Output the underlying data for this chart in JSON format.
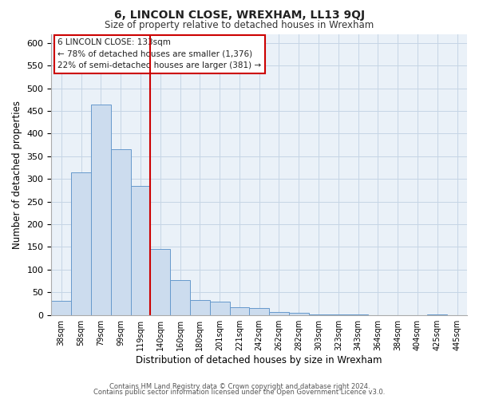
{
  "title": "6, LINCOLN CLOSE, WREXHAM, LL13 9QJ",
  "subtitle": "Size of property relative to detached houses in Wrexham",
  "xlabel": "Distribution of detached houses by size in Wrexham",
  "ylabel": "Number of detached properties",
  "bar_values": [
    32,
    315,
    465,
    365,
    285,
    145,
    77,
    33,
    30,
    17,
    15,
    7,
    4,
    2,
    2,
    2,
    0,
    0,
    0,
    2,
    0
  ],
  "bar_labels": [
    "38sqm",
    "58sqm",
    "79sqm",
    "99sqm",
    "119sqm",
    "140sqm",
    "160sqm",
    "180sqm",
    "201sqm",
    "221sqm",
    "242sqm",
    "262sqm",
    "282sqm",
    "303sqm",
    "323sqm",
    "343sqm",
    "364sqm",
    "384sqm",
    "404sqm",
    "425sqm",
    "445sqm"
  ],
  "bar_color": "#ccdcee",
  "bar_edge_color": "#6699cc",
  "red_line_index": 4.5,
  "annotation_title": "6 LINCOLN CLOSE: 133sqm",
  "annotation_line1": "← 78% of detached houses are smaller (1,376)",
  "annotation_line2": "22% of semi-detached houses are larger (381) →",
  "annotation_box_color": "#ffffff",
  "annotation_box_edge": "#cc0000",
  "ylim": [
    0,
    620
  ],
  "yticks": [
    0,
    50,
    100,
    150,
    200,
    250,
    300,
    350,
    400,
    450,
    500,
    550,
    600
  ],
  "footer1": "Contains HM Land Registry data © Crown copyright and database right 2024.",
  "footer2": "Contains public sector information licensed under the Open Government Licence v3.0.",
  "background_color": "#ffffff",
  "plot_bg_color": "#eaf1f8",
  "grid_color": "#c5d5e5"
}
